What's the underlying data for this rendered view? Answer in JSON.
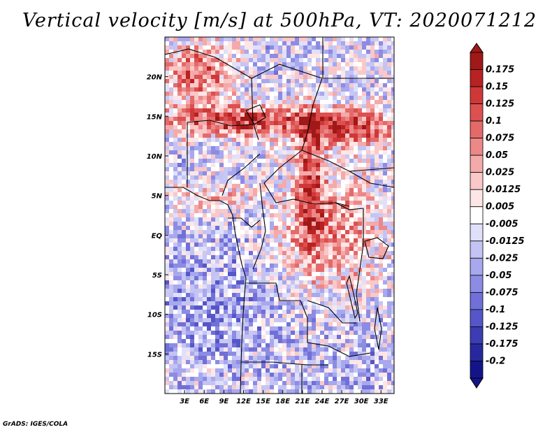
{
  "title": "Vertical velocity [m/s] at 500hPa, VT: 2020071212",
  "credit": "GrADS: IGES/COLA",
  "chart_data": {
    "type": "heatmap",
    "variable": "Vertical velocity",
    "units": "m/s",
    "level": "500hPa",
    "valid_time": "2020071212",
    "lon_range": [
      0,
      35
    ],
    "lat_range": [
      -20,
      25
    ],
    "x_ticks": [
      {
        "lon": 3,
        "label": "3E"
      },
      {
        "lon": 6,
        "label": "6E"
      },
      {
        "lon": 9,
        "label": "9E"
      },
      {
        "lon": 12,
        "label": "12E"
      },
      {
        "lon": 15,
        "label": "15E"
      },
      {
        "lon": 18,
        "label": "18E"
      },
      {
        "lon": 21,
        "label": "21E"
      },
      {
        "lon": 24,
        "label": "24E"
      },
      {
        "lon": 27,
        "label": "27E"
      },
      {
        "lon": 30,
        "label": "30E"
      },
      {
        "lon": 33,
        "label": "33E"
      }
    ],
    "y_ticks": [
      {
        "lat": 20,
        "label": "20N"
      },
      {
        "lat": 15,
        "label": "15N"
      },
      {
        "lat": 10,
        "label": "10N"
      },
      {
        "lat": 5,
        "label": "5N"
      },
      {
        "lat": 0,
        "label": "EQ"
      },
      {
        "lat": -5,
        "label": "5S"
      },
      {
        "lat": -10,
        "label": "10S"
      },
      {
        "lat": -15,
        "label": "15S"
      }
    ],
    "colorbar": {
      "labels": [
        "0.175",
        "0.15",
        "0.125",
        "0.1",
        "0.075",
        "0.05",
        "0.025",
        "0.0125",
        "0.005",
        "-0.005",
        "-0.0125",
        "-0.025",
        "-0.05",
        "-0.075",
        "-0.1",
        "-0.125",
        "-0.175",
        "-0.2"
      ],
      "colors": [
        "#a01818",
        "#b82222",
        "#d03838",
        "#dc5050",
        "#e46a6a",
        "#ec8888",
        "#f4aaaa",
        "#fac8c8",
        "#fde6e6",
        "#ffffff",
        "#e0e0fa",
        "#c4c4f4",
        "#a8a8ee",
        "#8c8ce4",
        "#7070d8",
        "#5656c8",
        "#3c3cb4",
        "#28289e",
        "#14148a"
      ]
    }
  }
}
